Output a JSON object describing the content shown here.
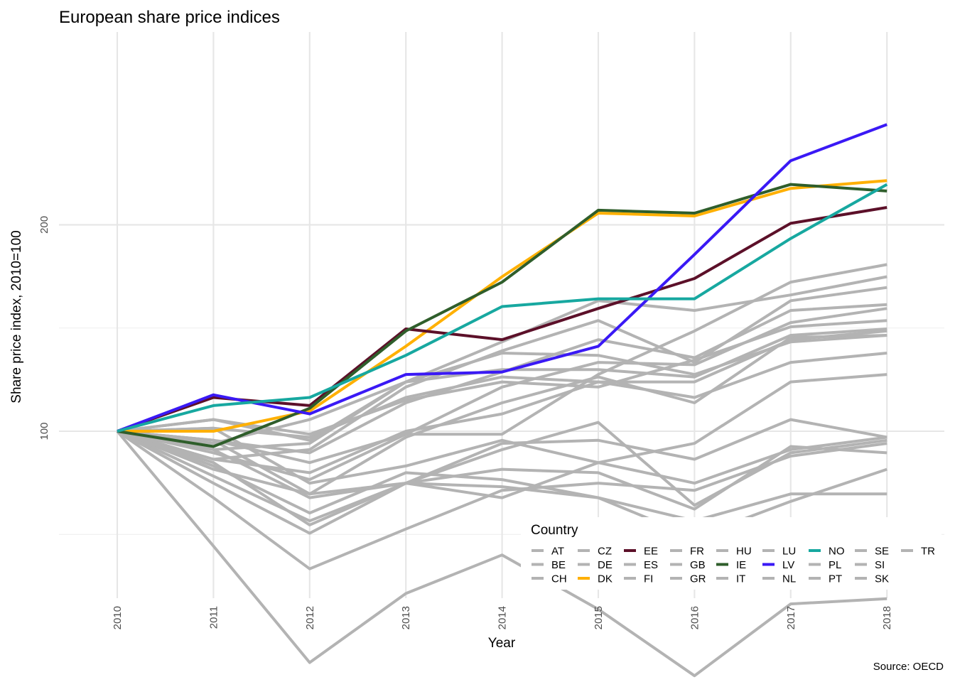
{
  "chart_data": {
    "type": "line",
    "title": "European share price indices",
    "xlabel": "Year",
    "ylabel": "Share price index, 2010=100",
    "caption": "Source: OECD",
    "legend_title": "Country",
    "legend_position": "bottom-right",
    "y_scale": "log",
    "ylim": [
      40,
      275
    ],
    "yticks": [
      100,
      200
    ],
    "x": [
      2010,
      2011,
      2012,
      2013,
      2014,
      2015,
      2016,
      2017,
      2018
    ],
    "x_tick_labels": [
      "2010",
      "2011",
      "2012",
      "2013",
      "2014",
      "2015",
      "2016",
      "2017",
      "2018"
    ],
    "grid": true,
    "colors": {
      "EE": "#5c1029",
      "DK": "#ffb000",
      "IE": "#2f5e2b",
      "LV": "#3a19f5",
      "NO": "#17a8a0",
      "other": "#b3b3b3"
    },
    "series": [
      {
        "name": "AT",
        "values": [
          100,
          86,
          74,
          84,
          80,
          90,
          96,
          118,
          121
        ]
      },
      {
        "name": "BE",
        "values": [
          100,
          91,
          87,
          100,
          106,
          118,
          112,
          126,
          130
        ]
      },
      {
        "name": "CH",
        "values": [
          100,
          96,
          104,
          118,
          130,
          129,
          121,
          135,
          138
        ]
      },
      {
        "name": "CZ",
        "values": [
          100,
          97,
          81,
          84,
          83,
          80,
          70,
          79,
          88
        ]
      },
      {
        "name": "DE",
        "values": [
          100,
          91,
          94,
          116,
          131,
          145,
          126,
          155,
          162
        ]
      },
      {
        "name": "DK",
        "values": [
          100,
          100,
          107,
          133,
          168,
          208,
          206,
          226,
          232
        ]
      },
      {
        "name": "EE",
        "values": [
          100,
          112,
          109,
          141,
          136,
          151,
          167,
          201,
          212
        ]
      },
      {
        "name": "ES",
        "values": [
          100,
          90,
          73,
          84,
          96,
          97,
          91,
          104,
          98
        ]
      },
      {
        "name": "FI",
        "values": [
          100,
          88,
          81,
          98,
          110,
          120,
          110,
          137,
          138
        ]
      },
      {
        "name": "FR",
        "values": [
          100,
          93,
          85,
          99,
          116,
          126,
          125,
          144,
          151
        ]
      },
      {
        "name": "GB",
        "values": [
          100,
          101,
          98,
          112,
          120,
          118,
          118,
          136,
          140
        ]
      },
      {
        "name": "GR",
        "values": [
          100,
          68,
          46,
          58,
          66,
          55,
          44,
          56,
          57
        ]
      },
      {
        "name": "HU",
        "values": [
          100,
          97,
          90,
          99,
          99,
          121,
          140,
          165,
          175
        ]
      },
      {
        "name": "IE",
        "values": [
          100,
          95,
          108,
          140,
          165,
          210,
          208,
          229,
          224
        ]
      },
      {
        "name": "IT",
        "values": [
          100,
          84,
          71,
          84,
          94,
          103,
          78,
          93,
          97
        ]
      },
      {
        "name": "LU",
        "values": [
          100,
          104,
          97,
          118,
          123,
          123,
          120,
          138,
          141
        ]
      },
      {
        "name": "LV",
        "values": [
          100,
          113,
          106,
          121,
          122,
          133,
          181,
          248,
          280
        ]
      },
      {
        "name": "NL",
        "values": [
          100,
          97,
          93,
          110,
          122,
          136,
          128,
          150,
          153
        ]
      },
      {
        "name": "NO",
        "values": [
          100,
          109,
          112,
          129,
          152,
          156,
          156,
          191,
          229
        ]
      },
      {
        "name": "PL",
        "values": [
          100,
          101,
          84,
          89,
          97,
          90,
          84,
          94,
          98
        ]
      },
      {
        "name": "PT",
        "values": [
          100,
          89,
          76,
          87,
          85,
          80,
          74,
          81,
          81
        ]
      },
      {
        "name": "SE",
        "values": [
          100,
          94,
          96,
          118,
          135,
          155,
          150,
          158,
          168
        ]
      },
      {
        "name": "SI",
        "values": [
          100,
          80,
          63,
          72,
          82,
          84,
          82,
          92,
          96
        ]
      },
      {
        "name": "SK",
        "values": [
          100,
          104,
          99,
          111,
          118,
          116,
          127,
          142,
          145
        ]
      },
      {
        "name": "TR",
        "values": [
          100,
          94,
          80,
          84,
          88,
          87,
          77,
          95,
          93
        ]
      }
    ],
    "legend_columns": [
      [
        "AT",
        "BE",
        "CH"
      ],
      [
        "CZ",
        "DE",
        "DK"
      ],
      [
        "EE",
        "ES",
        "FI"
      ],
      [
        "FR",
        "GB",
        "GR"
      ],
      [
        "HU",
        "IE",
        "IT"
      ],
      [
        "LU",
        "LV",
        "NL"
      ],
      [
        "NO",
        "PL",
        "PT"
      ],
      [
        "SE",
        "SI",
        "SK"
      ],
      [
        "TR"
      ]
    ]
  }
}
